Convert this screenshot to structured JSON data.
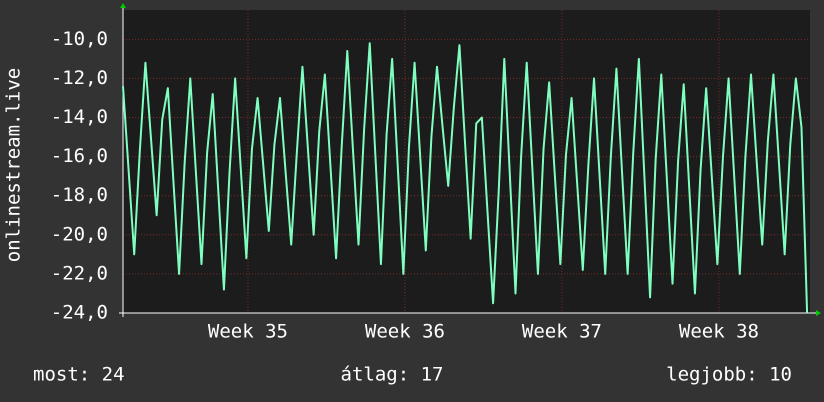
{
  "chart_data": {
    "type": "line",
    "ylabel": "onlinestream.live",
    "x": [
      0,
      0.25,
      0.5,
      0.75,
      1,
      1.25,
      1.5,
      1.75,
      2,
      2.25,
      2.5,
      2.75,
      3,
      3.25,
      3.5,
      3.75,
      4,
      4.25,
      4.5,
      4.75,
      5,
      5.25,
      5.5,
      5.75,
      6,
      6.25,
      6.5,
      6.75,
      7,
      7.25,
      7.5,
      7.75,
      8,
      8.25,
      8.5,
      8.75,
      9,
      9.25,
      9.5,
      9.75,
      10,
      10.25,
      10.5,
      10.75,
      11,
      11.25,
      11.5,
      11.75,
      12,
      12.25,
      12.5,
      12.75,
      13,
      13.25,
      13.5,
      13.75,
      14,
      14.25,
      14.5,
      14.75,
      15,
      15.25,
      15.5,
      15.75,
      16,
      16.25,
      16.5,
      16.75,
      17,
      17.25,
      17.5,
      17.75,
      18,
      18.25,
      18.5,
      18.75,
      19,
      19.25,
      19.5,
      19.75,
      20,
      20.25,
      20.5,
      20.75,
      21,
      21.25,
      21.5,
      21.75,
      22,
      22.25,
      22.5,
      22.75,
      23,
      23.25,
      23.5,
      23.75,
      24,
      24.25,
      24.5,
      24.75,
      25,
      25.25,
      25.5,
      25.75,
      26,
      26.25,
      26.5,
      26.75,
      27,
      27.25,
      27.5,
      27.75,
      28,
      28.25,
      28.5,
      28.75,
      29,
      29.25,
      29.5,
      29.75,
      30,
      30.25,
      30.5
    ],
    "series": [
      {
        "name": "onlinestream.live",
        "color": "#7fffbf",
        "values": [
          -12.4,
          -16.7,
          -21.0,
          -15.7,
          -11.2,
          -15.1,
          -19.0,
          -14.1,
          -12.5,
          -17.3,
          -22.0,
          -16.3,
          -12.0,
          -16.8,
          -21.5,
          -15.8,
          -12.8,
          -17.8,
          -22.8,
          -16.8,
          -12.0,
          -16.6,
          -21.2,
          -15.6,
          -13.0,
          -16.4,
          -19.8,
          -15.4,
          -13.0,
          -16.8,
          -20.5,
          -15.8,
          -11.4,
          -15.7,
          -20.0,
          -14.7,
          -11.8,
          -16.5,
          -21.2,
          -15.5,
          -10.6,
          -15.6,
          -20.5,
          -14.6,
          -10.2,
          -15.9,
          -21.5,
          -14.9,
          -11.0,
          -16.5,
          -22.0,
          -15.5,
          -11.2,
          -16.0,
          -20.8,
          -15.0,
          -11.4,
          -14.5,
          -17.5,
          -13.5,
          -10.3,
          -15.3,
          -20.2,
          -14.3,
          -14.0,
          -18.8,
          -23.5,
          -17.8,
          -11.0,
          -17.0,
          -23.0,
          -16.0,
          -11.2,
          -16.6,
          -22.0,
          -15.6,
          -12.2,
          -16.9,
          -21.5,
          -15.9,
          -13.0,
          -17.4,
          -21.8,
          -16.4,
          -12.0,
          -17.0,
          -22.0,
          -16.0,
          -11.5,
          -16.8,
          -22.0,
          -15.8,
          -11.0,
          -17.1,
          -23.2,
          -16.1,
          -11.8,
          -17.2,
          -22.5,
          -16.2,
          -12.3,
          -17.7,
          -23.0,
          -16.7,
          -12.5,
          -17.0,
          -21.5,
          -16.0,
          -12.0,
          -17.0,
          -22.0,
          -16.0,
          -11.8,
          -16.2,
          -20.5,
          -15.2,
          -11.8,
          -16.4,
          -21.0,
          -15.4,
          -12.0,
          -14.5,
          -24.0
        ]
      }
    ],
    "xlim": [
      0,
      30.63
    ],
    "xticks": [
      {
        "value": 5.57,
        "label": "Week 35"
      },
      {
        "value": 12.57,
        "label": "Week 36"
      },
      {
        "value": 19.57,
        "label": "Week 37"
      },
      {
        "value": 26.57,
        "label": "Week 38"
      }
    ],
    "ylim": [
      -24,
      -8.5
    ],
    "yticks": [
      {
        "value": -24,
        "label": "-24,0"
      },
      {
        "value": -22,
        "label": "-22,0"
      },
      {
        "value": -20,
        "label": "-20,0"
      },
      {
        "value": -18,
        "label": "-18,0"
      },
      {
        "value": -16,
        "label": "-16,0"
      },
      {
        "value": -14,
        "label": "-14,0"
      },
      {
        "value": -12,
        "label": "-12,0"
      },
      {
        "value": -10,
        "label": "-10,0"
      }
    ],
    "grid": true,
    "footer": [
      "most: 24",
      "átlag: 17",
      "legjobb: 10"
    ]
  }
}
